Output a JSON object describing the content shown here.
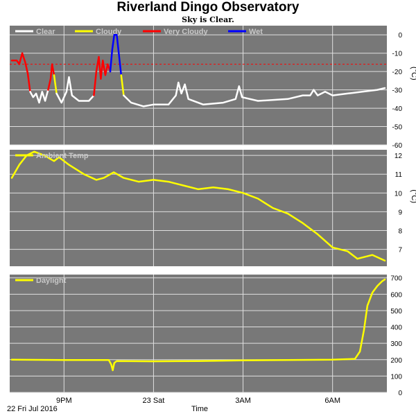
{
  "title": "Riverland Dingo Observatory",
  "subtitle": "Sky is Clear.",
  "colors": {
    "panel_bg": "#787878",
    "grid": "#e0e0e0",
    "clear": "#ffffff",
    "cloudy": "#ffff00",
    "very_cloudy": "#ff0000",
    "wet": "#0000ff",
    "threshold": "#ff0000"
  },
  "x_axis": {
    "label": "Time",
    "date_label": "22 Fri Jul 2016",
    "range": [
      "2016-07-22T19:15",
      "2016-07-23T07:45"
    ],
    "ticks": [
      {
        "time": "2016-07-22T21:00",
        "label": "9PM"
      },
      {
        "time": "2016-07-23T00:00",
        "label": "23 Sat"
      },
      {
        "time": "2016-07-23T03:00",
        "label": "3AM"
      },
      {
        "time": "2016-07-23T06:00",
        "label": "6AM"
      }
    ]
  },
  "chart_data": [
    {
      "type": "line",
      "unit": "(°C)",
      "ylim": [
        -60,
        5
      ],
      "yticks": [
        0,
        -10,
        -20,
        -30,
        -40,
        -50,
        -60
      ],
      "threshold": -16,
      "legend": [
        {
          "name": "Clear",
          "color": "#ffffff"
        },
        {
          "name": "Cloudy",
          "color": "#ffff00"
        },
        {
          "name": "Very Cloudy",
          "color": "#ff0000"
        },
        {
          "name": "Wet",
          "color": "#0000ff"
        }
      ],
      "series": [
        {
          "name": "Very Cloudy",
          "color": "#ff0000",
          "points": [
            [
              "2016-07-22T19:15",
              -14
            ],
            [
              "2016-07-22T19:25",
              -14
            ],
            [
              "2016-07-22T19:30",
              -16
            ],
            [
              "2016-07-22T19:36",
              -10
            ],
            [
              "2016-07-22T19:42",
              -15
            ],
            [
              "2016-07-22T19:47",
              -21
            ],
            [
              "2016-07-22T19:52",
              -31
            ]
          ]
        },
        {
          "name": "Clear",
          "color": "#ffffff",
          "points": [
            [
              "2016-07-22T19:52",
              -31
            ],
            [
              "2016-07-22T19:58",
              -34
            ],
            [
              "2016-07-22T20:04",
              -32
            ],
            [
              "2016-07-22T20:10",
              -37
            ],
            [
              "2016-07-22T20:16",
              -31
            ],
            [
              "2016-07-22T20:22",
              -36
            ],
            [
              "2016-07-22T20:28",
              -30
            ]
          ]
        },
        {
          "name": "Very Cloudy",
          "color": "#ff0000",
          "points": [
            [
              "2016-07-22T20:28",
              -30
            ],
            [
              "2016-07-22T20:33",
              -24
            ],
            [
              "2016-07-22T20:36",
              -16
            ],
            [
              "2016-07-22T20:40",
              -22
            ]
          ]
        },
        {
          "name": "Cloudy",
          "color": "#ffff00",
          "points": [
            [
              "2016-07-22T20:40",
              -22
            ],
            [
              "2016-07-22T20:45",
              -32
            ]
          ]
        },
        {
          "name": "Clear",
          "color": "#ffffff",
          "points": [
            [
              "2016-07-22T20:45",
              -32
            ],
            [
              "2016-07-22T20:55",
              -37
            ],
            [
              "2016-07-22T21:05",
              -31
            ],
            [
              "2016-07-22T21:10",
              -23
            ],
            [
              "2016-07-22T21:16",
              -33
            ],
            [
              "2016-07-22T21:30",
              -36
            ],
            [
              "2016-07-22T21:50",
              -36
            ],
            [
              "2016-07-22T22:00",
              -33
            ]
          ]
        },
        {
          "name": "Very Cloudy",
          "color": "#ff0000",
          "points": [
            [
              "2016-07-22T22:00",
              -33
            ],
            [
              "2016-07-22T22:05",
              -20
            ],
            [
              "2016-07-22T22:10",
              -12
            ],
            [
              "2016-07-22T22:14",
              -24
            ],
            [
              "2016-07-22T22:18",
              -14
            ],
            [
              "2016-07-22T22:23",
              -22
            ],
            [
              "2016-07-22T22:28",
              -16
            ],
            [
              "2016-07-22T22:33",
              -20
            ]
          ]
        },
        {
          "name": "Wet",
          "color": "#0000ff",
          "points": [
            [
              "2016-07-22T22:33",
              -20
            ],
            [
              "2016-07-22T22:37",
              -8
            ],
            [
              "2016-07-22T22:41",
              0
            ],
            [
              "2016-07-22T22:46",
              0
            ],
            [
              "2016-07-22T22:51",
              -12
            ],
            [
              "2016-07-22T22:55",
              -22
            ]
          ]
        },
        {
          "name": "Cloudy",
          "color": "#ffff00",
          "points": [
            [
              "2016-07-22T22:55",
              -22
            ],
            [
              "2016-07-22T23:00",
              -33
            ]
          ]
        },
        {
          "name": "Clear",
          "color": "#ffffff",
          "points": [
            [
              "2016-07-22T23:00",
              -33
            ],
            [
              "2016-07-22T23:15",
              -37
            ],
            [
              "2016-07-22T23:40",
              -39
            ],
            [
              "2016-07-23T00:00",
              -38
            ],
            [
              "2016-07-23T00:30",
              -38
            ],
            [
              "2016-07-23T00:45",
              -33
            ],
            [
              "2016-07-23T00:50",
              -26
            ],
            [
              "2016-07-23T00:56",
              -32
            ],
            [
              "2016-07-23T01:03",
              -27
            ],
            [
              "2016-07-23T01:10",
              -35
            ],
            [
              "2016-07-23T01:40",
              -38
            ],
            [
              "2016-07-23T02:20",
              -37
            ],
            [
              "2016-07-23T02:45",
              -35
            ],
            [
              "2016-07-23T02:52",
              -28
            ],
            [
              "2016-07-23T02:58",
              -34
            ],
            [
              "2016-07-23T03:30",
              -36
            ],
            [
              "2016-07-23T04:30",
              -35
            ],
            [
              "2016-07-23T05:00",
              -33
            ],
            [
              "2016-07-23T05:15",
              -33
            ],
            [
              "2016-07-23T05:22",
              -30
            ],
            [
              "2016-07-23T05:30",
              -33
            ],
            [
              "2016-07-23T05:45",
              -31
            ],
            [
              "2016-07-23T06:00",
              -33
            ],
            [
              "2016-07-23T06:30",
              -32
            ],
            [
              "2016-07-23T07:00",
              -31
            ],
            [
              "2016-07-23T07:30",
              -30
            ],
            [
              "2016-07-23T07:45",
              -29
            ]
          ]
        }
      ]
    },
    {
      "type": "line",
      "unit": "(°C)",
      "ylim": [
        6.1,
        12.3
      ],
      "yticks": [
        12,
        11,
        10,
        9,
        8,
        7
      ],
      "legend": [
        {
          "name": "Ambient Temp",
          "color": "#ffff00"
        }
      ],
      "series": [
        {
          "name": "Ambient Temp",
          "color": "#ffff00",
          "points": [
            [
              "2016-07-22T19:15",
              10.8
            ],
            [
              "2016-07-22T19:30",
              11.5
            ],
            [
              "2016-07-22T19:45",
              12.0
            ],
            [
              "2016-07-22T20:00",
              12.2
            ],
            [
              "2016-07-22T20:20",
              12.0
            ],
            [
              "2016-07-22T20:40",
              11.7
            ],
            [
              "2016-07-22T20:50",
              11.9
            ],
            [
              "2016-07-22T21:10",
              11.5
            ],
            [
              "2016-07-22T21:40",
              11.0
            ],
            [
              "2016-07-22T22:05",
              10.7
            ],
            [
              "2016-07-22T22:20",
              10.8
            ],
            [
              "2016-07-22T22:40",
              11.1
            ],
            [
              "2016-07-22T23:00",
              10.8
            ],
            [
              "2016-07-22T23:30",
              10.6
            ],
            [
              "2016-07-23T00:00",
              10.7
            ],
            [
              "2016-07-23T00:30",
              10.6
            ],
            [
              "2016-07-23T01:00",
              10.4
            ],
            [
              "2016-07-23T01:30",
              10.2
            ],
            [
              "2016-07-23T02:00",
              10.3
            ],
            [
              "2016-07-23T02:30",
              10.2
            ],
            [
              "2016-07-23T03:00",
              10.0
            ],
            [
              "2016-07-23T03:30",
              9.7
            ],
            [
              "2016-07-23T04:00",
              9.2
            ],
            [
              "2016-07-23T04:30",
              8.9
            ],
            [
              "2016-07-23T05:00",
              8.4
            ],
            [
              "2016-07-23T05:30",
              7.8
            ],
            [
              "2016-07-23T06:00",
              7.1
            ],
            [
              "2016-07-23T06:30",
              6.9
            ],
            [
              "2016-07-23T06:50",
              6.5
            ],
            [
              "2016-07-23T07:20",
              6.7
            ],
            [
              "2016-07-23T07:45",
              6.4
            ]
          ]
        }
      ]
    },
    {
      "type": "line",
      "unit": "",
      "ylim": [
        0,
        720
      ],
      "yticks": [
        700,
        600,
        500,
        400,
        300,
        200,
        100,
        0
      ],
      "legend": [
        {
          "name": "Daylight",
          "color": "#ffff00"
        }
      ],
      "series": [
        {
          "name": "Daylight",
          "color": "#ffff00",
          "points": [
            [
              "2016-07-22T19:15",
              200
            ],
            [
              "2016-07-22T21:00",
              198
            ],
            [
              "2016-07-22T22:30",
              198
            ],
            [
              "2016-07-22T22:35",
              170
            ],
            [
              "2016-07-22T22:38",
              135
            ],
            [
              "2016-07-22T22:41",
              180
            ],
            [
              "2016-07-22T22:46",
              192
            ],
            [
              "2016-07-23T00:00",
              190
            ],
            [
              "2016-07-23T01:30",
              192
            ],
            [
              "2016-07-23T03:00",
              196
            ],
            [
              "2016-07-23T04:30",
              198
            ],
            [
              "2016-07-23T06:00",
              200
            ],
            [
              "2016-07-23T06:45",
              205
            ],
            [
              "2016-07-23T06:55",
              250
            ],
            [
              "2016-07-23T07:03",
              380
            ],
            [
              "2016-07-23T07:10",
              530
            ],
            [
              "2016-07-23T07:20",
              610
            ],
            [
              "2016-07-23T07:30",
              650
            ],
            [
              "2016-07-23T07:40",
              680
            ],
            [
              "2016-07-23T07:45",
              690
            ]
          ]
        }
      ]
    }
  ]
}
